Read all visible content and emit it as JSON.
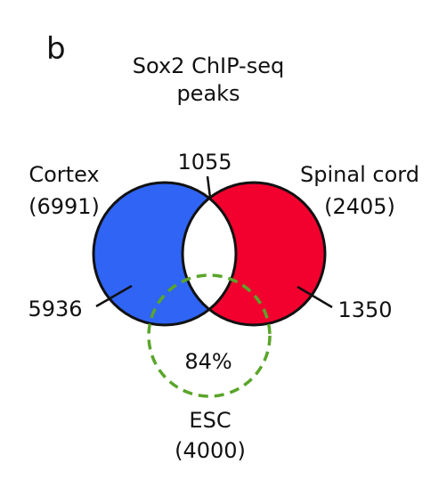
{
  "panel_label": "b",
  "title": [
    "Sox2 ChIP-seq",
    "peaks"
  ],
  "sets": {
    "cortex": {
      "name": "Cortex",
      "count": "(6991)",
      "color": "#2f64f5",
      "unique": "5936"
    },
    "spinal": {
      "name": "Spinal cord",
      "count": "(2405)",
      "color": "#f2002e",
      "unique": "1350"
    },
    "esc": {
      "name": "ESC",
      "count": "(4000)",
      "color": "#5aa52a",
      "style": "dashed"
    }
  },
  "overlap": {
    "cortex_spinal": "1055",
    "esc_percent": "84%"
  }
}
